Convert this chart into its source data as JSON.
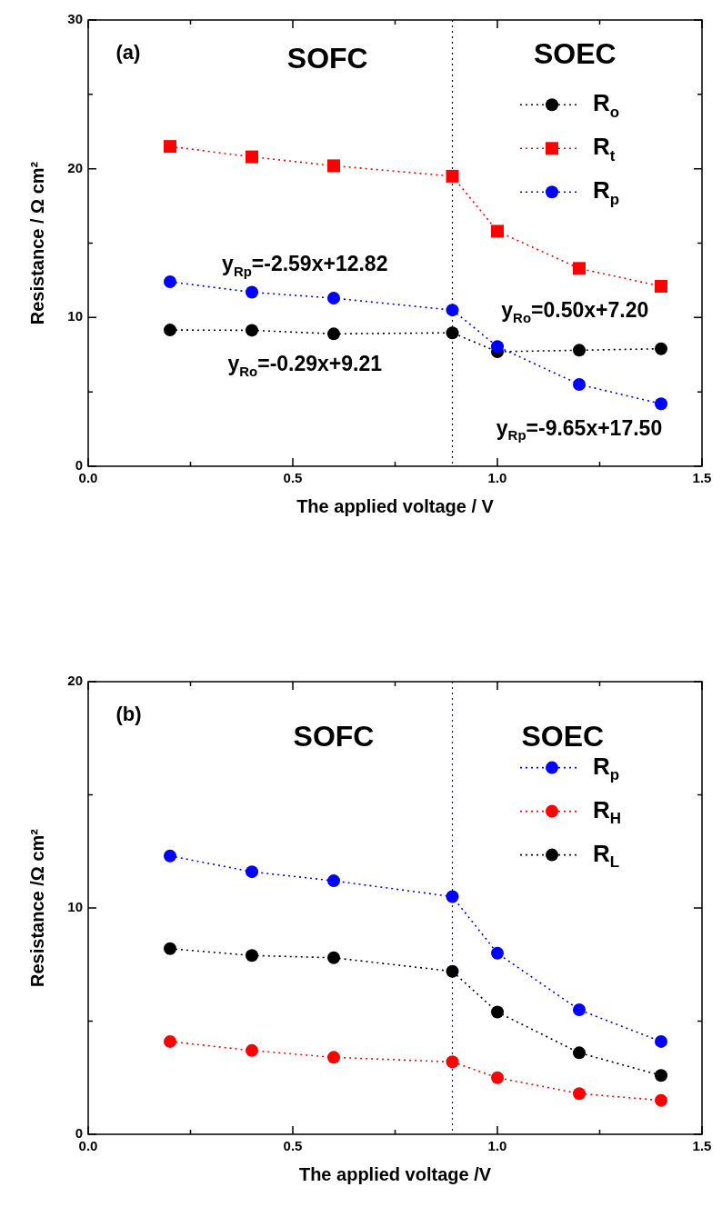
{
  "chart_data": [
    {
      "type": "line",
      "title": "(a)",
      "xlabel": "The applied voltage / V",
      "ylabel": "Resistance / Ω cm²",
      "x": [
        0.2,
        0.4,
        0.6,
        0.89,
        1.0,
        1.2,
        1.4
      ],
      "series": [
        {
          "name": "R$_{o}$",
          "color": "#000000",
          "marker": "circle",
          "values": [
            9.16,
            9.14,
            8.9,
            8.97,
            7.7,
            7.8,
            7.9
          ]
        },
        {
          "name": "R$_{t}$",
          "color": "#ff0000",
          "marker": "square",
          "values": [
            21.5,
            20.8,
            20.2,
            19.5,
            15.8,
            13.3,
            12.1
          ]
        },
        {
          "name": "R$_{p}$",
          "color": "#0000ff",
          "marker": "circle",
          "values": [
            12.4,
            11.7,
            11.3,
            10.5,
            8.05,
            5.5,
            4.2
          ]
        }
      ],
      "xlim": [
        0,
        1.5
      ],
      "xticks": [
        {
          "value": 0,
          "label": "0.0"
        },
        {
          "value": 0.25,
          "label": null
        },
        {
          "value": 0.5,
          "label": "0.5"
        },
        {
          "value": 0.75,
          "label": null
        },
        {
          "value": 1,
          "label": "1.0"
        },
        {
          "value": 1.25,
          "label": null
        },
        {
          "value": 1.5,
          "label": "1.5"
        }
      ],
      "ylim": [
        0,
        30
      ],
      "yticks": [
        0,
        {
          "value": 5,
          "label": null
        },
        10,
        {
          "value": 15,
          "label": null
        },
        20,
        {
          "value": 25,
          "label": null
        },
        30
      ],
      "ref_lines": [
        {
          "axis": "x",
          "value": 0.89,
          "color": "#000000",
          "line_style": "dotted"
        }
      ],
      "annotations": [
        "SOFC",
        "SOEC",
        "y$_{Rp}$=-2.59x+12.82",
        "y$_{Ro}$=-0.29x+9.21",
        "y$_{Ro}$=0.50x+7.20",
        "y$_{Rp}$=-9.65x+17.50"
      ],
      "grid": false,
      "legend": "top right",
      "line_style": "dotted"
    },
    {
      "type": "line",
      "title": "(b)",
      "xlabel": "The applied voltage /V",
      "ylabel": "Resistance /Ω cm²",
      "x": [
        0.2,
        0.4,
        0.6,
        0.89,
        1.0,
        1.2,
        1.4
      ],
      "series": [
        {
          "name": "R$_{p}$",
          "color": "#0000ff",
          "marker": "circle",
          "values": [
            12.3,
            11.6,
            11.2,
            10.5,
            8.0,
            5.5,
            4.1
          ]
        },
        {
          "name": "R$_{H}$",
          "color": "#ff0000",
          "marker": "circle",
          "values": [
            4.1,
            3.7,
            3.4,
            3.2,
            2.5,
            1.8,
            1.5
          ]
        },
        {
          "name": "R$_{L}$",
          "color": "#000000",
          "marker": "circle",
          "values": [
            8.2,
            7.9,
            7.8,
            7.2,
            5.4,
            3.6,
            2.6
          ]
        }
      ],
      "xlim": [
        0,
        1.5
      ],
      "xticks": [
        {
          "value": 0,
          "label": "0.0"
        },
        {
          "value": 0.25,
          "label": null
        },
        {
          "value": 0.5,
          "label": "0.5"
        },
        {
          "value": 0.75,
          "label": null
        },
        {
          "value": 1,
          "label": "1.0"
        },
        {
          "value": 1.25,
          "label": null
        },
        {
          "value": 1.5,
          "label": "1.5"
        }
      ],
      "ylim": [
        0,
        20
      ],
      "yticks": [
        0,
        {
          "value": 5,
          "label": null
        },
        10,
        {
          "value": 15,
          "label": null
        },
        20
      ],
      "ref_lines": [
        {
          "axis": "x",
          "value": 0.89,
          "color": "#0000ff",
          "line_style": "dotted"
        }
      ],
      "annotations": [
        "SOFC",
        "SOEC"
      ],
      "grid": false,
      "legend": "top right",
      "line_style": "dotted"
    }
  ]
}
